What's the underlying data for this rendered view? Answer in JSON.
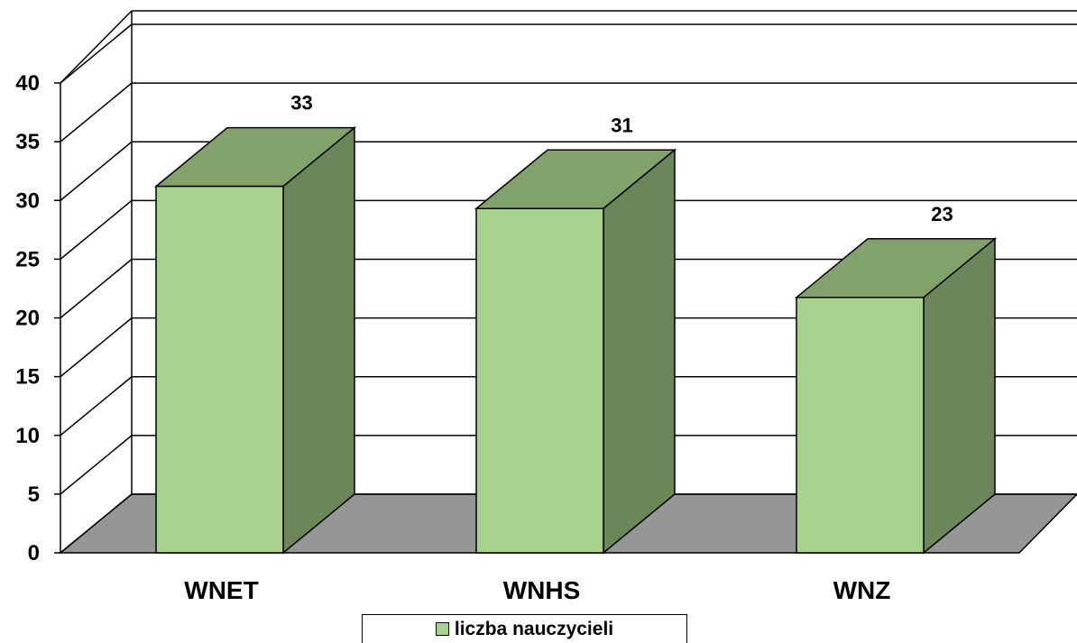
{
  "chart_data": {
    "type": "bar",
    "categories": [
      "WNET",
      "WNHS",
      "WNZ"
    ],
    "series": [
      {
        "name": "liczba nauczycieli",
        "values": [
          33,
          31,
          23
        ]
      }
    ],
    "data_labels": [
      "33",
      "31",
      "23"
    ],
    "y_ticks": [
      "0",
      "5",
      "10",
      "15",
      "20",
      "25",
      "30",
      "35",
      "40"
    ],
    "ylim": [
      0,
      40
    ],
    "grid": true,
    "style": "3d-column",
    "legend_position": "bottom",
    "colors": {
      "front": "#a9d18e",
      "top": "#82a26c",
      "side": "#6b8759",
      "floor": "#969696",
      "gridline": "#000000"
    }
  }
}
